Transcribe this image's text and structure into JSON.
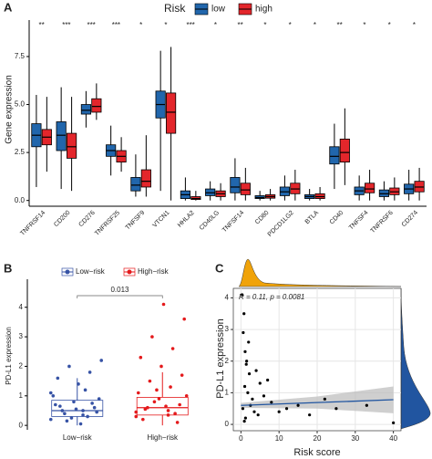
{
  "chart_data": [
    {
      "type": "grouped-box",
      "panel": "A",
      "legend_title": "Risk",
      "y_label": "Gene expression",
      "categories": [
        "TNFRSF14",
        "CD200",
        "CD276",
        "TNFRSF25",
        "TNFSF9",
        "VTCN1",
        "HHLA2",
        "CD40LG",
        "TNFSF14",
        "CD80",
        "PDCD1LG2",
        "BTLA",
        "CD40",
        "TNFSF4",
        "TNFRSF6",
        "CD274"
      ],
      "significance": [
        "**",
        "***",
        "***",
        "***",
        "*",
        "*",
        "***",
        "*",
        "**",
        "*",
        "*",
        "*",
        "**",
        "*",
        "*",
        "*"
      ],
      "ylim": [
        -0.3,
        9.4
      ],
      "yticks": [
        {
          "value": 0,
          "label": "0.0"
        },
        2.5,
        {
          "value": 5,
          "label": "5.0"
        },
        7.5
      ],
      "series": [
        {
          "name": "low",
          "color": "#2166ac",
          "values": [
            {
              "min": 0.7,
              "q1": 2.8,
              "median": 3.4,
              "q3": 4.0,
              "max": 5.5
            },
            {
              "min": 0.6,
              "q1": 2.6,
              "median": 3.4,
              "q3": 4.1,
              "max": 5.9
            },
            {
              "min": 3.8,
              "q1": 4.5,
              "median": 4.7,
              "q3": 5.0,
              "max": 5.7
            },
            {
              "min": 1.3,
              "q1": 2.3,
              "median": 2.6,
              "q3": 2.9,
              "max": 3.9
            },
            {
              "min": 0.2,
              "q1": 0.5,
              "median": 0.8,
              "q3": 1.2,
              "max": 2.4
            },
            {
              "min": 0.5,
              "q1": 4.3,
              "median": 5.0,
              "q3": 5.7,
              "max": 7.8
            },
            {
              "min": 0,
              "q1": 0.1,
              "median": 0.3,
              "q3": 0.5,
              "max": 1.2
            },
            {
              "min": 0,
              "q1": 0.25,
              "median": 0.4,
              "q3": 0.6,
              "max": 1.0
            },
            {
              "min": 0,
              "q1": 0.4,
              "median": 0.7,
              "q3": 1.2,
              "max": 2.2
            },
            {
              "min": 0,
              "q1": 0.1,
              "median": 0.15,
              "q3": 0.25,
              "max": 0.5
            },
            {
              "min": 0,
              "q1": 0.25,
              "median": 0.45,
              "q3": 0.7,
              "max": 1.3
            },
            {
              "min": 0,
              "q1": 0.1,
              "median": 0.2,
              "q3": 0.3,
              "max": 0.6
            },
            {
              "min": 0.6,
              "q1": 1.9,
              "median": 2.3,
              "q3": 2.8,
              "max": 4.0
            },
            {
              "min": 0,
              "q1": 0.3,
              "median": 0.5,
              "q3": 0.7,
              "max": 1.3
            },
            {
              "min": 0,
              "q1": 0.2,
              "median": 0.35,
              "q3": 0.55,
              "max": 1.0
            },
            {
              "min": 0,
              "q1": 0.35,
              "median": 0.6,
              "q3": 0.85,
              "max": 1.6
            }
          ]
        },
        {
          "name": "high",
          "color": "#e3262b",
          "values": [
            {
              "min": 1.5,
              "q1": 2.9,
              "median": 3.3,
              "q3": 3.7,
              "max": 5.4
            },
            {
              "min": 0.5,
              "q1": 2.2,
              "median": 2.8,
              "q3": 3.5,
              "max": 5.4
            },
            {
              "min": 4.2,
              "q1": 4.6,
              "median": 4.9,
              "q3": 5.3,
              "max": 6.1
            },
            {
              "min": 1.5,
              "q1": 2.0,
              "median": 2.3,
              "q3": 2.6,
              "max": 3.3
            },
            {
              "min": 0.2,
              "q1": 0.7,
              "median": 1.0,
              "q3": 1.6,
              "max": 3.4
            },
            {
              "min": 0,
              "q1": 3.5,
              "median": 4.6,
              "q3": 5.6,
              "max": 8.0
            },
            {
              "min": 0,
              "q1": 0.05,
              "median": 0.1,
              "q3": 0.2,
              "max": 0.5
            },
            {
              "min": 0,
              "q1": 0.2,
              "median": 0.35,
              "q3": 0.5,
              "max": 0.9
            },
            {
              "min": 0,
              "q1": 0.3,
              "median": 0.55,
              "q3": 0.9,
              "max": 1.7
            },
            {
              "min": 0,
              "q1": 0.12,
              "median": 0.2,
              "q3": 0.3,
              "max": 0.6
            },
            {
              "min": 0,
              "q1": 0.35,
              "median": 0.6,
              "q3": 0.9,
              "max": 1.6
            },
            {
              "min": 0,
              "q1": 0.1,
              "median": 0.2,
              "q3": 0.35,
              "max": 0.7
            },
            {
              "min": 0.8,
              "q1": 2.0,
              "median": 2.5,
              "q3": 3.2,
              "max": 4.8
            },
            {
              "min": 0,
              "q1": 0.4,
              "median": 0.6,
              "q3": 0.9,
              "max": 1.6
            },
            {
              "min": 0,
              "q1": 0.3,
              "median": 0.45,
              "q3": 0.65,
              "max": 1.2
            },
            {
              "min": 0,
              "q1": 0.45,
              "median": 0.7,
              "q3": 1.0,
              "max": 1.7
            }
          ]
        }
      ]
    },
    {
      "type": "box-jitter",
      "panel": "B",
      "y_label": "PD-L1 expression",
      "p_value": "0.013",
      "categories": [
        "Low−risk",
        "High−risk"
      ],
      "ylim": [
        -0.15,
        4.95
      ],
      "yticks": [
        0,
        1,
        2,
        3,
        4
      ],
      "series": [
        {
          "name": "Low−risk",
          "color": "#3753a5",
          "box": {
            "min": 0,
            "q1": 0.3,
            "median": 0.5,
            "q3": 0.85,
            "max": 1.6
          },
          "points": [
            0.2,
            0.35,
            0.5,
            0.6,
            0.8,
            1.0,
            1.2,
            0.4,
            0.45,
            0.55,
            0.7,
            0.3,
            0.15,
            0.9,
            1.4,
            1.6,
            1.8,
            2.0,
            2.2,
            0.05,
            0.65,
            0.75,
            0.25,
            1.1,
            0.5
          ]
        },
        {
          "name": "High−risk",
          "color": "#e41a1c",
          "box": {
            "min": 0,
            "q1": 0.35,
            "median": 0.6,
            "q3": 0.95,
            "max": 1.8
          },
          "points": [
            0.3,
            0.5,
            0.6,
            0.7,
            0.9,
            1.1,
            1.3,
            1.5,
            1.7,
            2.0,
            2.3,
            2.6,
            3.0,
            3.6,
            4.1,
            0.2,
            0.4,
            0.8,
            1.0,
            0.65,
            0.55,
            0.1,
            1.2,
            0.45,
            0.35
          ]
        }
      ]
    },
    {
      "type": "scatter",
      "panel": "C",
      "annotation": "R = 0.11, p = 0.0081",
      "x_label": "Risk score",
      "y_label": "PD-L1 expression",
      "xlim": [
        -2,
        42
      ],
      "xticks": [
        0,
        10,
        20,
        30,
        40
      ],
      "ylim": [
        -0.2,
        4.3
      ],
      "yticks": [
        0,
        1,
        2,
        3,
        4
      ],
      "grid": true,
      "color": "#000000",
      "fit_color": "#2155a0",
      "x": [
        0.5,
        1,
        1.5,
        2,
        0.8,
        1.2,
        3,
        4,
        5,
        2.5,
        0.3,
        1.8,
        6,
        7,
        8,
        10,
        12,
        15,
        18,
        22,
        25,
        33,
        40,
        0.6,
        1.1,
        2.2,
        3.5,
        0.9,
        4.5,
        1.4
      ],
      "y": [
        0.5,
        1.2,
        2.0,
        2.6,
        3.5,
        0.2,
        0.8,
        1.7,
        1.3,
        0.6,
        4.1,
        1.0,
        0.9,
        1.4,
        0.7,
        0.4,
        0.5,
        0.6,
        0.3,
        0.8,
        0.5,
        0.6,
        0.05,
        2.9,
        2.3,
        1.6,
        0.4,
        0.1,
        0.3,
        1.9
      ],
      "fit": {
        "x": [
          0,
          20,
          40
        ],
        "y": [
          0.6,
          0.69,
          0.78
        ],
        "lower": [
          0.52,
          0.5,
          0.35
        ],
        "upper": [
          0.68,
          0.88,
          1.2
        ]
      }
    }
  ]
}
